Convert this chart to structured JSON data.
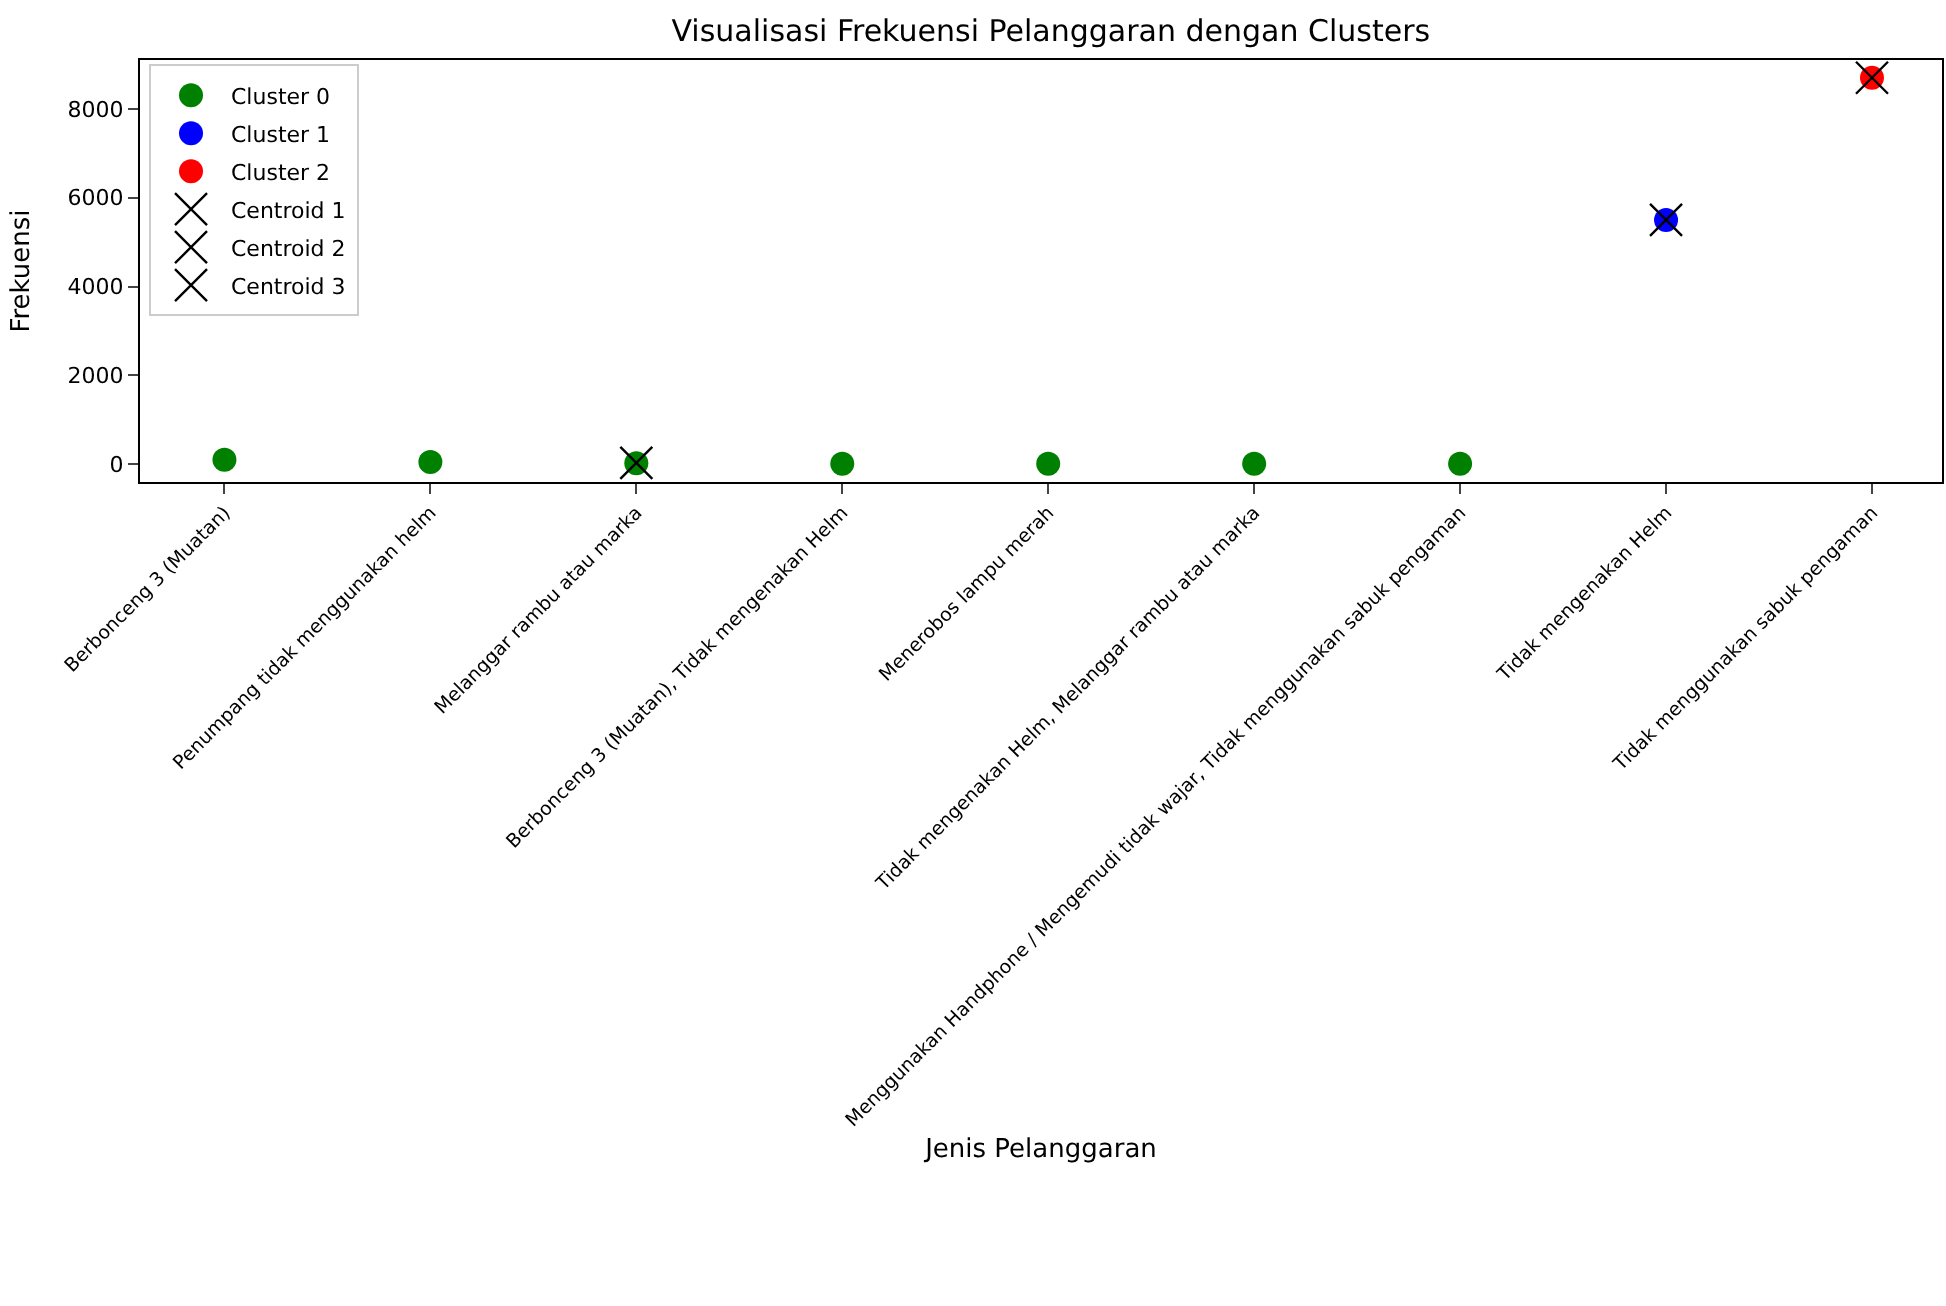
{
  "chart_data": {
    "type": "scatter",
    "title": "Visualisasi Frekuensi Pelanggaran dengan Clusters",
    "xlabel": "Jenis Pelanggaran",
    "ylabel": "Frekuensi",
    "categories": [
      "Berbonceng 3 (Muatan)",
      "Penumpang tidak menggunakan helm",
      "Melanggar rambu atau marka",
      "Berbonceng 3 (Muatan), Tidak mengenakan Helm",
      "Menerobos lampu merah",
      "Tidak mengenakan Helm, Melanggar rambu atau marka",
      "Menggunakan Handphone / Mengemudi tidak wajar, Tidak menggunakan sabuk pengaman",
      "Tidak mengenakan Helm",
      "Tidak menggunakan sabuk pengaman"
    ],
    "series": [
      {
        "name": "Cluster 0",
        "color": "#008000",
        "marker": "circle",
        "values": [
          100,
          50,
          20,
          10,
          10,
          10,
          10,
          null,
          null
        ]
      },
      {
        "name": "Cluster 1",
        "color": "#0000ff",
        "marker": "circle",
        "values": [
          null,
          null,
          null,
          null,
          null,
          null,
          null,
          5500,
          null
        ]
      },
      {
        "name": "Cluster 2",
        "color": "#ff0000",
        "marker": "circle",
        "values": [
          null,
          null,
          null,
          null,
          null,
          null,
          null,
          null,
          8700
        ]
      },
      {
        "name": "Centroid 1",
        "color": "#000000",
        "marker": "cross",
        "values": [
          null,
          null,
          30,
          null,
          null,
          null,
          null,
          null,
          null
        ]
      },
      {
        "name": "Centroid 2",
        "color": "#000000",
        "marker": "cross",
        "values": [
          null,
          null,
          null,
          null,
          null,
          null,
          null,
          5500,
          null
        ]
      },
      {
        "name": "Centroid 3",
        "color": "#000000",
        "marker": "cross",
        "values": [
          null,
          null,
          null,
          null,
          null,
          null,
          null,
          null,
          8700
        ]
      }
    ],
    "ylim": [
      -400,
      9100
    ],
    "yticks": [
      0,
      2000,
      4000,
      6000,
      8000
    ],
    "legend": "top left"
  }
}
